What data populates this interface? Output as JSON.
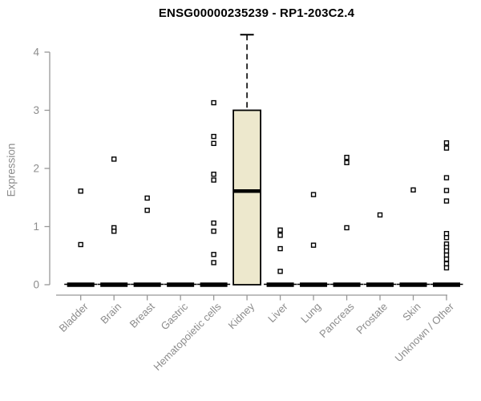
{
  "chart_data": {
    "type": "boxplot",
    "title": "ENSG00000235239 - RP1-203C2.4",
    "xlabel": "",
    "ylabel": "Expression",
    "ylim": [
      0,
      4.35
    ],
    "yticks": [
      0,
      1,
      2,
      3,
      4
    ],
    "grid": false,
    "legend": null,
    "x_tick_rotation": -45,
    "categories": [
      "Bladder",
      "Brain",
      "Breast",
      "Gastric",
      "Hematopoietic cells",
      "Kidney",
      "Liver",
      "Lung",
      "Pancreas",
      "Prostate",
      "Skin",
      "Unknown / Other"
    ],
    "boxes": [
      {
        "category": "Bladder",
        "median": 0,
        "q1": 0,
        "q3": 0,
        "whisker_low": 0,
        "whisker_high": 0,
        "outliers": [
          1.61,
          0.69
        ]
      },
      {
        "category": "Brain",
        "median": 0,
        "q1": 0,
        "q3": 0,
        "whisker_low": 0,
        "whisker_high": 0,
        "outliers": [
          2.16,
          0.98,
          0.92
        ]
      },
      {
        "category": "Breast",
        "median": 0,
        "q1": 0,
        "q3": 0,
        "whisker_low": 0,
        "whisker_high": 0,
        "outliers": [
          1.49,
          1.28
        ]
      },
      {
        "category": "Gastric",
        "median": 0,
        "q1": 0,
        "q3": 0,
        "whisker_low": 0,
        "whisker_high": 0,
        "outliers": []
      },
      {
        "category": "Hematopoietic cells",
        "median": 0,
        "q1": 0,
        "q3": 0,
        "whisker_low": 0,
        "whisker_high": 0,
        "outliers": [
          3.13,
          2.55,
          2.43,
          1.9,
          1.8,
          1.06,
          0.92,
          0.52,
          0.38
        ]
      },
      {
        "category": "Kidney",
        "median": 1.61,
        "q1": 0,
        "q3": 3.0,
        "whisker_low": 0,
        "whisker_high": 4.3,
        "outliers": []
      },
      {
        "category": "Liver",
        "median": 0,
        "q1": 0,
        "q3": 0,
        "whisker_low": 0,
        "whisker_high": 0,
        "outliers": [
          0.94,
          0.85,
          0.62,
          0.23
        ]
      },
      {
        "category": "Lung",
        "median": 0,
        "q1": 0,
        "q3": 0,
        "whisker_low": 0,
        "whisker_high": 0,
        "outliers": [
          1.55,
          0.68
        ]
      },
      {
        "category": "Pancreas",
        "median": 0,
        "q1": 0,
        "q3": 0,
        "whisker_low": 0,
        "whisker_high": 0,
        "outliers": [
          2.19,
          2.1,
          0.98
        ]
      },
      {
        "category": "Prostate",
        "median": 0,
        "q1": 0,
        "q3": 0,
        "whisker_low": 0,
        "whisker_high": 0,
        "outliers": [
          1.2
        ]
      },
      {
        "category": "Skin",
        "median": 0,
        "q1": 0,
        "q3": 0,
        "whisker_low": 0,
        "whisker_high": 0,
        "outliers": [
          1.63
        ]
      },
      {
        "category": "Unknown / Other",
        "median": 0,
        "q1": 0,
        "q3": 0,
        "whisker_low": 0,
        "whisker_high": 0,
        "outliers": [
          2.44,
          2.35,
          1.84,
          1.62,
          1.44,
          0.88,
          0.81,
          0.7,
          0.64,
          0.58,
          0.51,
          0.44,
          0.36,
          0.29
        ]
      }
    ],
    "colors": {
      "box_fill": "#ede8cd",
      "box_border": "#000000",
      "median": "#000000",
      "whisker": "#000000",
      "outlier_fill": "#ffffff",
      "outlier_border": "#000000",
      "axis_line": "#979797",
      "tick_text": "#8c8c8c",
      "title_text": "#000000",
      "background": "#ffffff"
    }
  }
}
